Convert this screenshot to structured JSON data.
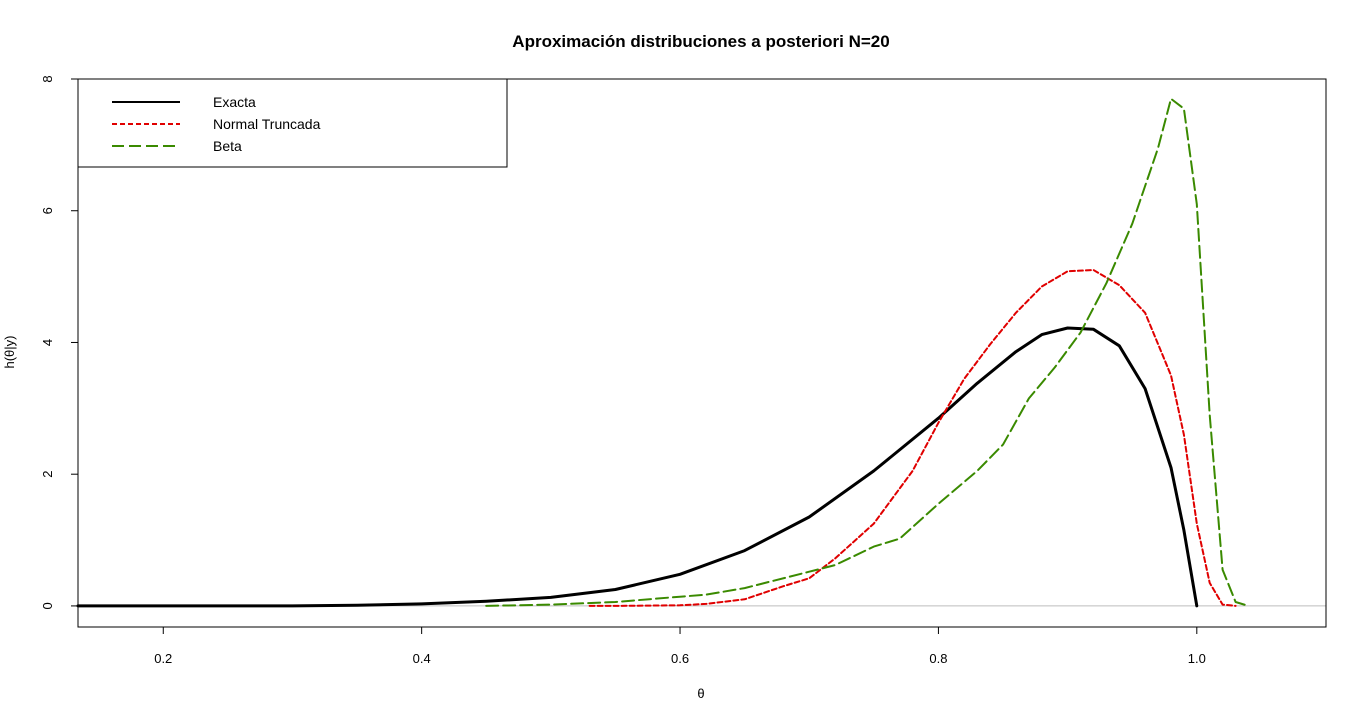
{
  "chart_data": {
    "type": "line",
    "title": "Aproximación distribuciones a posteriori N=20",
    "xlabel": "θ",
    "ylabel": "h(θ|y)",
    "xlim": [
      0.134,
      1.1
    ],
    "ylim": [
      -0.32,
      8.0
    ],
    "xticks": [
      0.2,
      0.4,
      0.6,
      0.8,
      1.0
    ],
    "xtick_labels": [
      "0.2",
      "0.4",
      "0.6",
      "0.8",
      "1.0"
    ],
    "yticks": [
      0,
      2,
      4,
      6,
      8
    ],
    "ytick_labels": [
      "0",
      "2",
      "4",
      "6",
      "8"
    ],
    "baseline": 0,
    "legend_position": "top-left",
    "series": [
      {
        "name": "Exacta",
        "color": "#000000",
        "style": "solid",
        "x": [
          0.134,
          0.2,
          0.25,
          0.3,
          0.35,
          0.4,
          0.45,
          0.5,
          0.55,
          0.6,
          0.65,
          0.7,
          0.75,
          0.8,
          0.83,
          0.86,
          0.88,
          0.9,
          0.92,
          0.94,
          0.96,
          0.98,
          0.99,
          1.0
        ],
        "y": [
          0.0,
          0.0,
          0.0,
          0.0,
          0.01,
          0.03,
          0.07,
          0.13,
          0.25,
          0.48,
          0.84,
          1.35,
          2.05,
          2.85,
          3.38,
          3.86,
          4.12,
          4.22,
          4.2,
          3.95,
          3.3,
          2.1,
          1.15,
          0.0
        ]
      },
      {
        "name": "Normal Truncada",
        "color": "#e00000",
        "style": "dashed",
        "x": [
          0.53,
          0.55,
          0.6,
          0.62,
          0.65,
          0.68,
          0.7,
          0.72,
          0.75,
          0.78,
          0.8,
          0.82,
          0.84,
          0.86,
          0.88,
          0.9,
          0.92,
          0.94,
          0.96,
          0.98,
          0.99,
          1.0,
          1.01,
          1.02,
          1.03
        ],
        "y": [
          0.0,
          0.0,
          0.01,
          0.03,
          0.1,
          0.3,
          0.42,
          0.72,
          1.25,
          2.05,
          2.78,
          3.45,
          3.97,
          4.45,
          4.85,
          5.08,
          5.1,
          4.87,
          4.45,
          3.5,
          2.6,
          1.25,
          0.35,
          0.02,
          0.0
        ]
      },
      {
        "name": "Beta",
        "color": "#3a8a00",
        "style": "longdash",
        "x": [
          0.45,
          0.5,
          0.55,
          0.6,
          0.62,
          0.65,
          0.7,
          0.72,
          0.75,
          0.77,
          0.8,
          0.83,
          0.85,
          0.87,
          0.89,
          0.91,
          0.93,
          0.95,
          0.97,
          0.98,
          0.99,
          1.0,
          1.01,
          1.02,
          1.03,
          1.04
        ],
        "y": [
          0.0,
          0.02,
          0.06,
          0.14,
          0.17,
          0.27,
          0.52,
          0.62,
          0.9,
          1.02,
          1.55,
          2.05,
          2.45,
          3.15,
          3.62,
          4.15,
          4.9,
          5.8,
          6.95,
          7.7,
          7.55,
          6.1,
          2.9,
          0.55,
          0.06,
          0.0
        ]
      }
    ]
  }
}
